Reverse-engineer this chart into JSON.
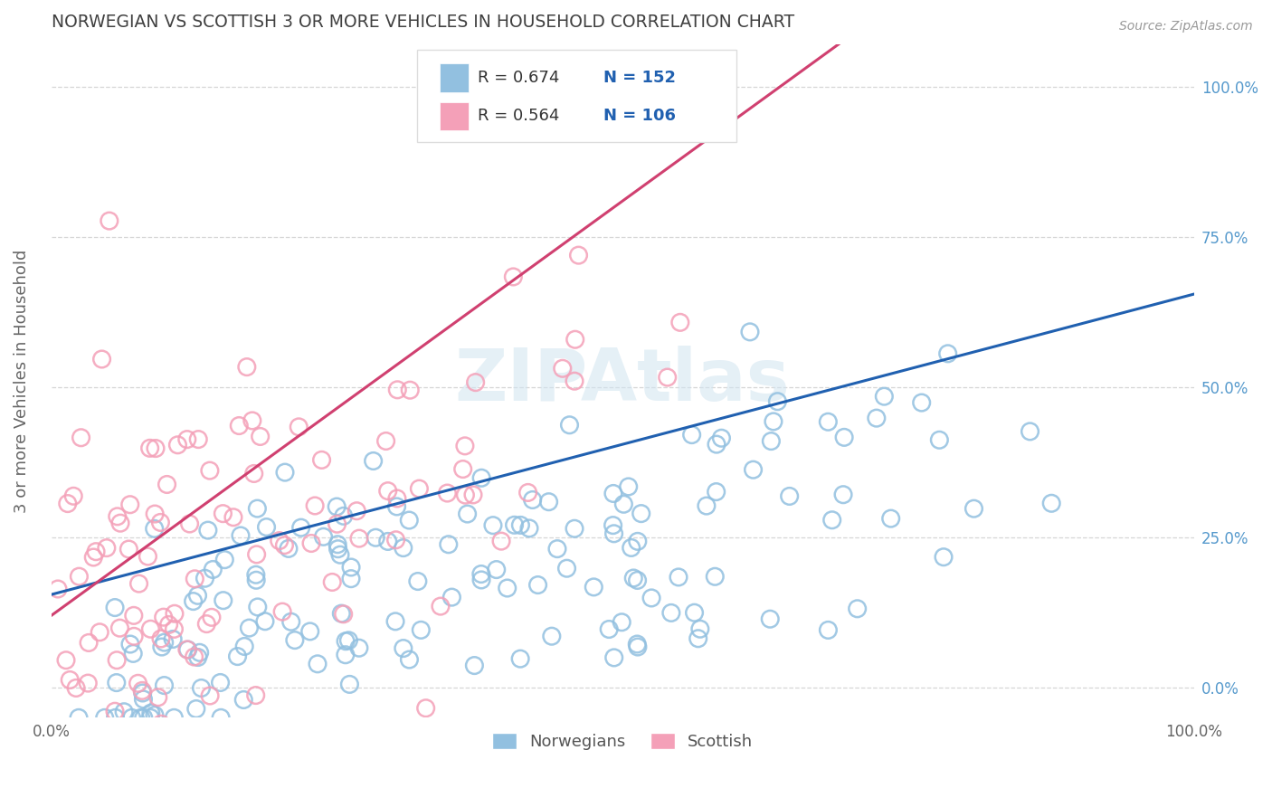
{
  "title": "NORWEGIAN VS SCOTTISH 3 OR MORE VEHICLES IN HOUSEHOLD CORRELATION CHART",
  "source": "Source: ZipAtlas.com",
  "ylabel": "3 or more Vehicles in Household",
  "watermark": "ZIPAtlas",
  "legend_blue_R": "0.674",
  "legend_blue_N": "152",
  "legend_pink_R": "0.564",
  "legend_pink_N": "106",
  "blue_color": "#92c0e0",
  "pink_color": "#f4a0b8",
  "blue_line_color": "#2060b0",
  "pink_line_color": "#d04070",
  "background_color": "#ffffff",
  "grid_color": "#cccccc",
  "title_color": "#404040",
  "right_axis_color": "#5599cc",
  "N_blue": 152,
  "N_pink": 106,
  "R_blue": 0.674,
  "R_pink": 0.564,
  "xmin": 0.0,
  "xmax": 1.0,
  "ymin": -0.05,
  "ymax": 1.07,
  "blue_seed": 7,
  "pink_seed": 13
}
